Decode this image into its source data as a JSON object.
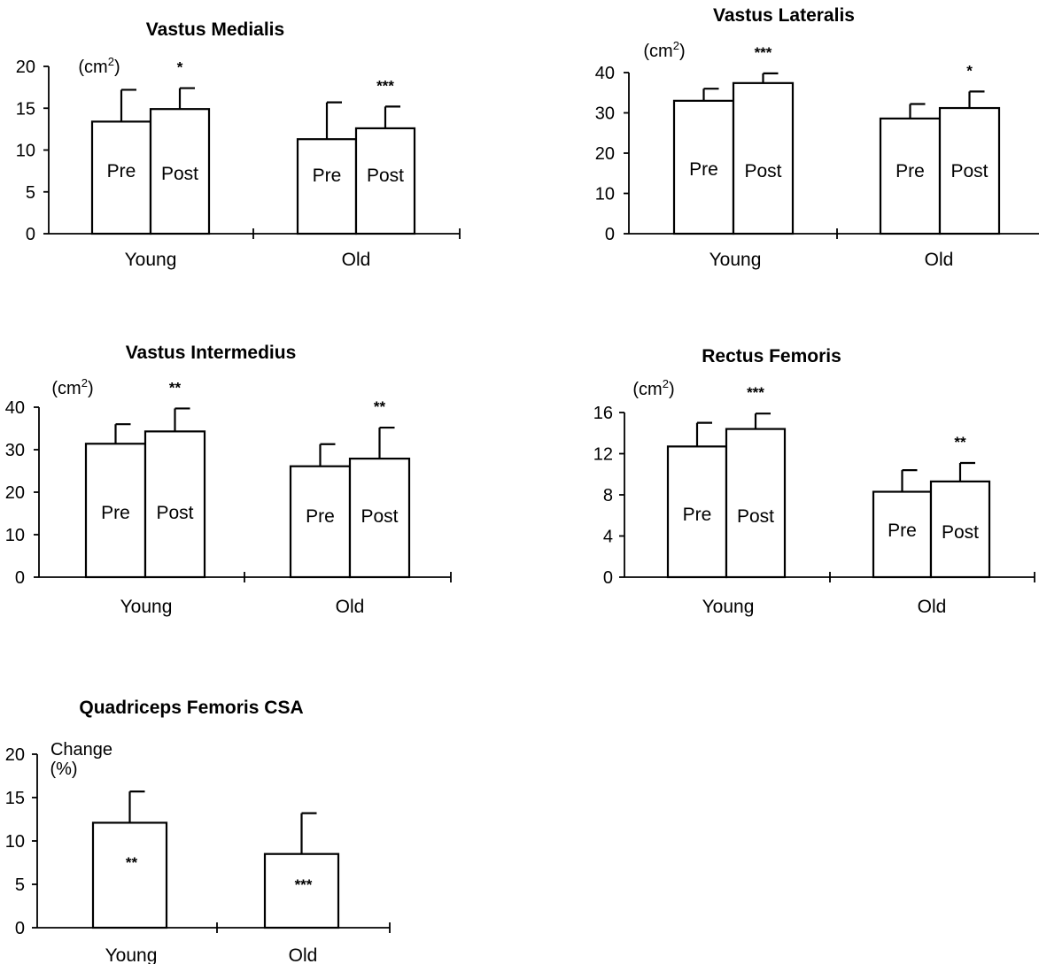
{
  "chart_data": [
    {
      "type": "bar",
      "title": "Vastus Medialis",
      "unit": "(cm²)",
      "categories": [
        "Young",
        "Old"
      ],
      "bar_labels": [
        "Pre",
        "Post"
      ],
      "ylim": [
        0,
        20
      ],
      "yticks": [
        "0",
        "5",
        "10",
        "15",
        "20"
      ],
      "bars": [
        {
          "category": "Young",
          "label": "Pre",
          "value": 13.4,
          "error": 3.8,
          "sig": ""
        },
        {
          "category": "Young",
          "label": "Post",
          "value": 14.9,
          "error": 2.5,
          "sig": "*"
        },
        {
          "category": "Old",
          "label": "Pre",
          "value": 11.3,
          "error": 4.4,
          "sig": ""
        },
        {
          "category": "Old",
          "label": "Post",
          "value": 12.6,
          "error": 2.6,
          "sig": "***"
        }
      ]
    },
    {
      "type": "bar",
      "title": "Vastus Lateralis",
      "unit": "(cm²)",
      "categories": [
        "Young",
        "Old"
      ],
      "bar_labels": [
        "Pre",
        "Post"
      ],
      "ylim": [
        0,
        40
      ],
      "yticks": [
        "0",
        "10",
        "20",
        "30",
        "40"
      ],
      "bars": [
        {
          "category": "Young",
          "label": "Pre",
          "value": 33.0,
          "error": 3.0,
          "sig": ""
        },
        {
          "category": "Young",
          "label": "Post",
          "value": 37.4,
          "error": 2.4,
          "sig": "***"
        },
        {
          "category": "Old",
          "label": "Pre",
          "value": 28.6,
          "error": 3.6,
          "sig": ""
        },
        {
          "category": "Old",
          "label": "Post",
          "value": 31.2,
          "error": 4.1,
          "sig": "*"
        }
      ]
    },
    {
      "type": "bar",
      "title": "Vastus Intermedius",
      "unit": "(cm²)",
      "categories": [
        "Young",
        "Old"
      ],
      "bar_labels": [
        "Pre",
        "Post"
      ],
      "ylim": [
        0,
        40
      ],
      "yticks": [
        "0",
        "10",
        "20",
        "30",
        "40"
      ],
      "bars": [
        {
          "category": "Young",
          "label": "Pre",
          "value": 31.4,
          "error": 4.6,
          "sig": ""
        },
        {
          "category": "Young",
          "label": "Post",
          "value": 34.3,
          "error": 5.4,
          "sig": "**"
        },
        {
          "category": "Old",
          "label": "Pre",
          "value": 26.1,
          "error": 5.2,
          "sig": ""
        },
        {
          "category": "Old",
          "label": "Post",
          "value": 27.9,
          "error": 7.3,
          "sig": "**"
        }
      ]
    },
    {
      "type": "bar",
      "title": "Rectus Femoris",
      "unit": "(cm²)",
      "categories": [
        "Young",
        "Old"
      ],
      "bar_labels": [
        "Pre",
        "Post"
      ],
      "ylim": [
        0,
        16
      ],
      "yticks": [
        "0",
        "4",
        "8",
        "12",
        "16"
      ],
      "bars": [
        {
          "category": "Young",
          "label": "Pre",
          "value": 12.7,
          "error": 2.3,
          "sig": ""
        },
        {
          "category": "Young",
          "label": "Post",
          "value": 14.4,
          "error": 1.5,
          "sig": "***"
        },
        {
          "category": "Old",
          "label": "Pre",
          "value": 8.3,
          "error": 2.1,
          "sig": ""
        },
        {
          "category": "Old",
          "label": "Post",
          "value": 9.3,
          "error": 1.8,
          "sig": "**"
        }
      ]
    },
    {
      "type": "bar",
      "title": "Quadriceps Femoris CSA",
      "unit": "Change\n(%)",
      "categories": [
        "Young",
        "Old"
      ],
      "bar_labels": [],
      "ylim": [
        0,
        20
      ],
      "yticks": [
        "0",
        "5",
        "10",
        "15",
        "20"
      ],
      "bars": [
        {
          "category": "Young",
          "label": "",
          "value": 12.1,
          "error": 3.6,
          "sig": "**"
        },
        {
          "category": "Old",
          "label": "",
          "value": 8.5,
          "error": 4.7,
          "sig": "***"
        }
      ]
    }
  ]
}
